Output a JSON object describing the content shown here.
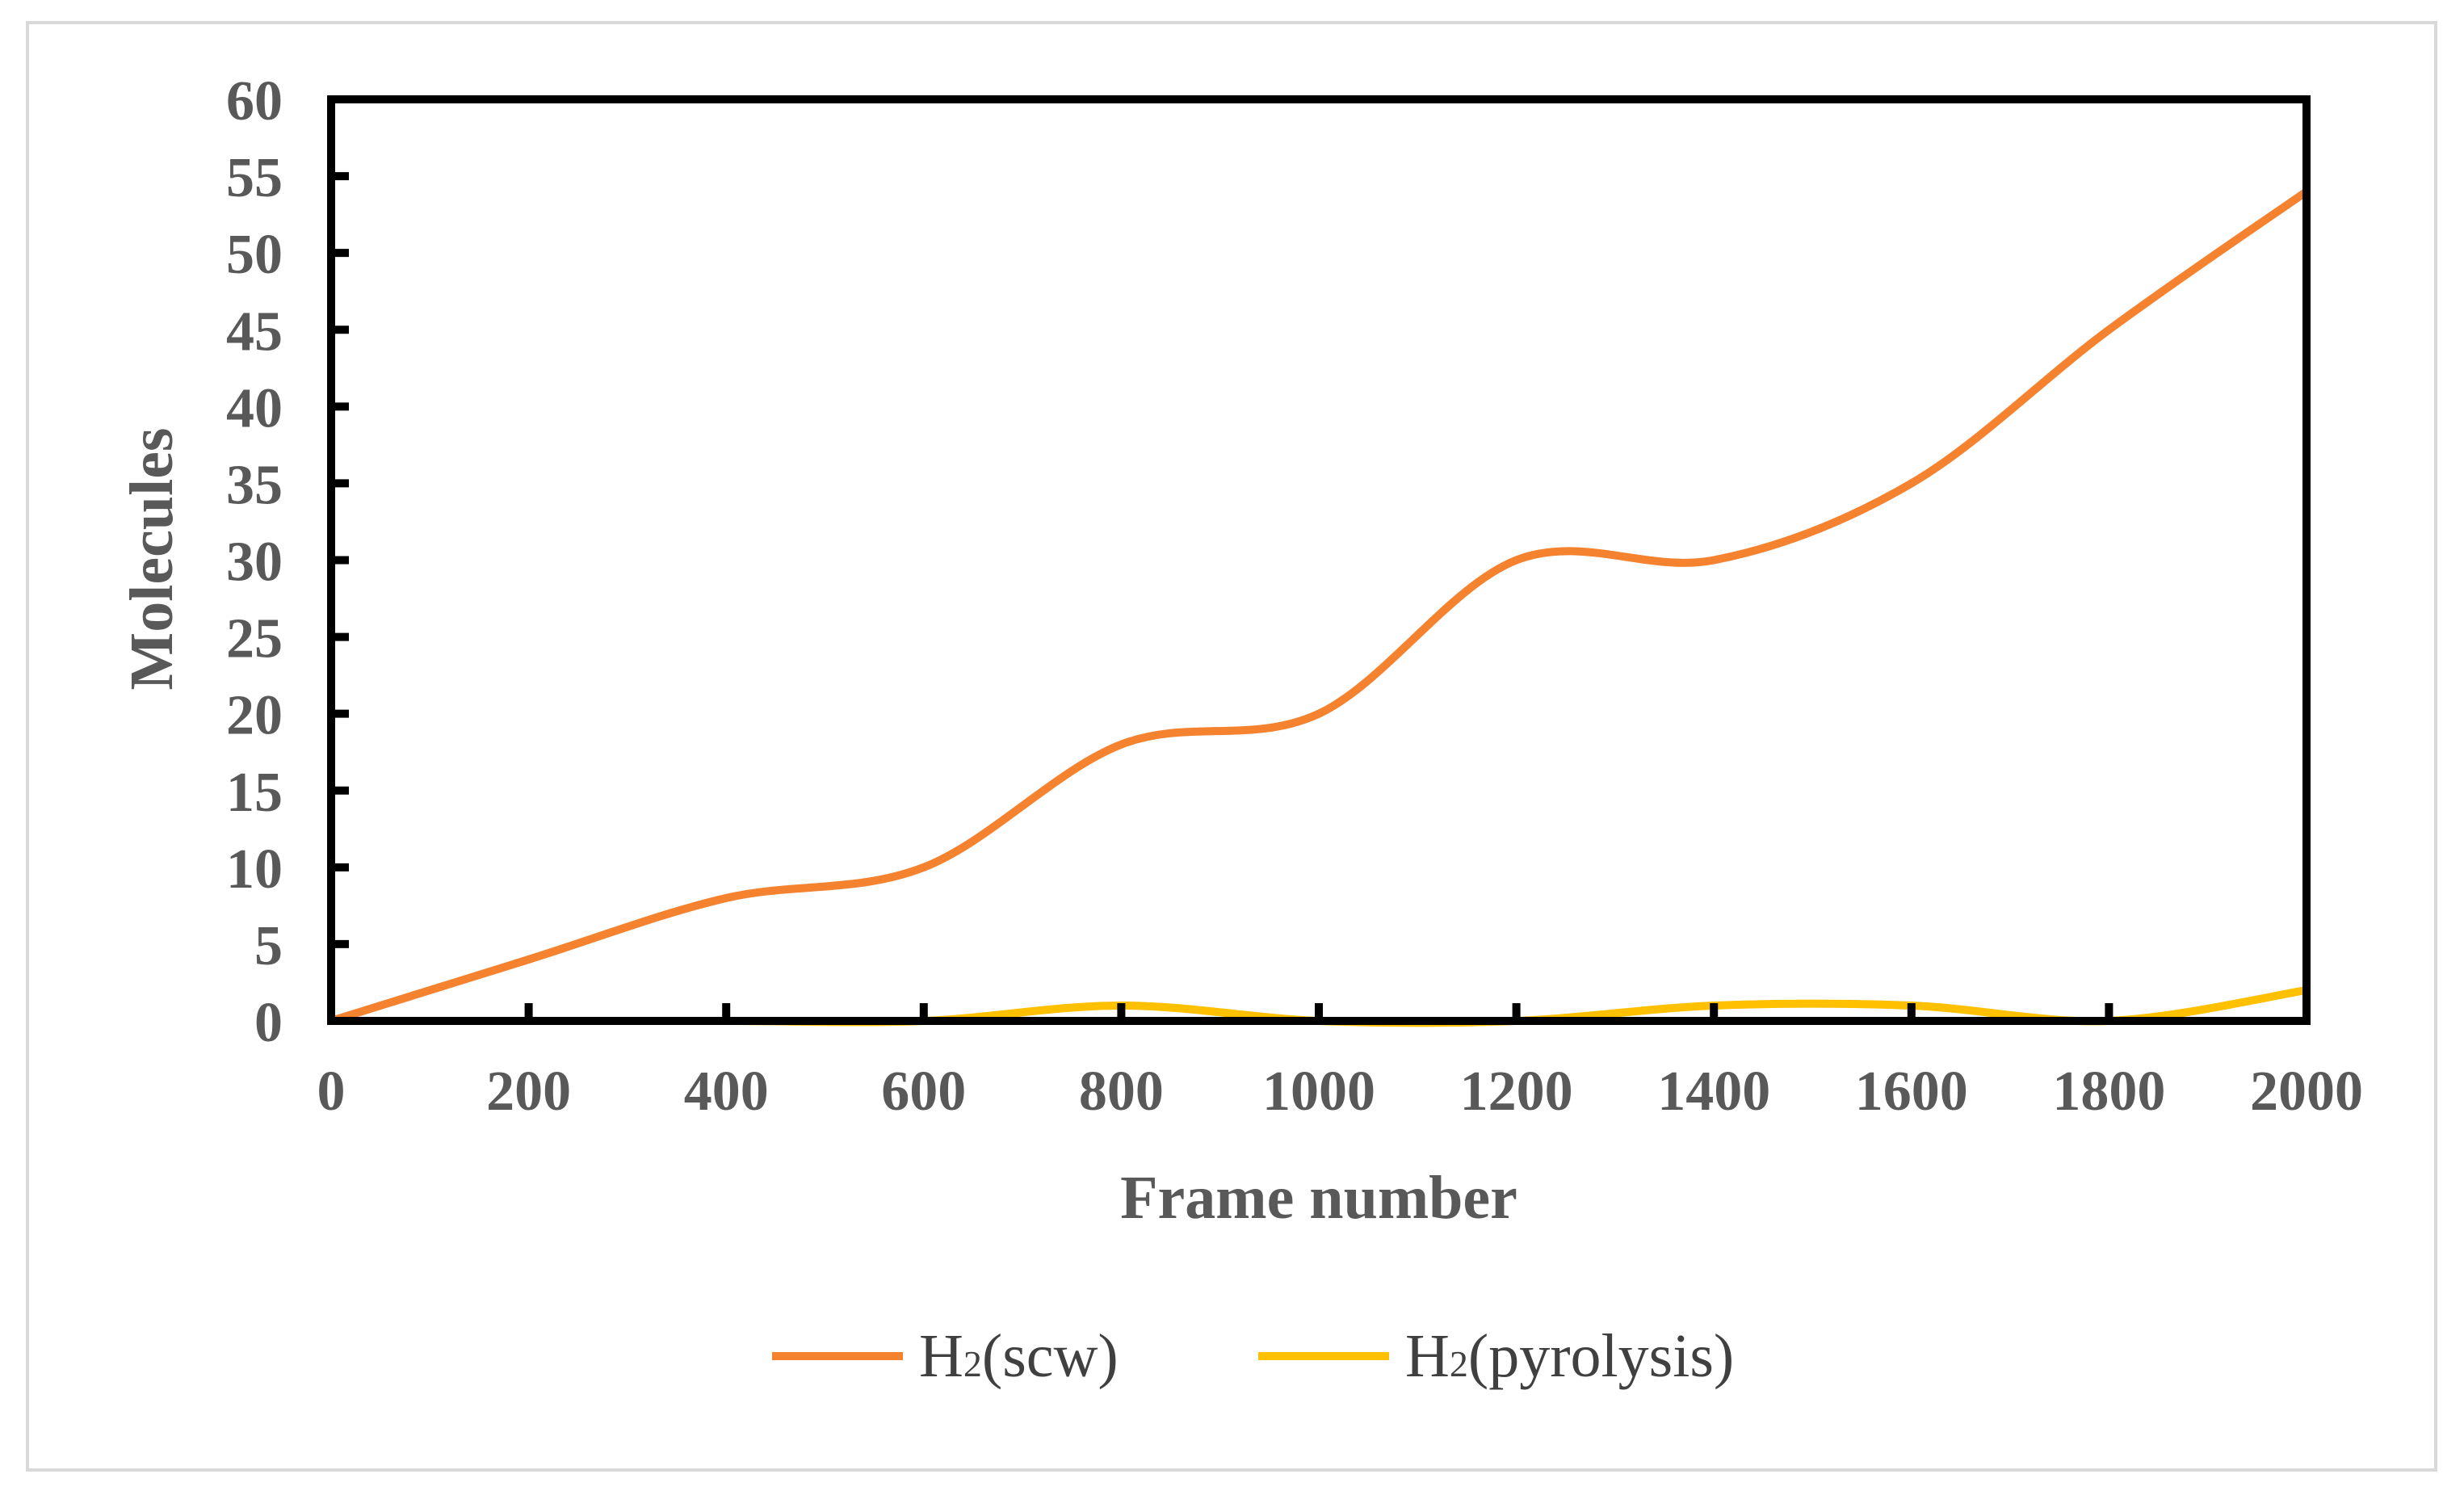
{
  "chart_data": {
    "type": "line",
    "title": "",
    "xlabel": "Frame number",
    "ylabel": "Molecules",
    "xlim": [
      0,
      2000
    ],
    "ylim": [
      0,
      60
    ],
    "x": [
      0,
      200,
      400,
      600,
      800,
      1000,
      1200,
      1400,
      1600,
      1800,
      2000
    ],
    "x_ticks": [
      "0",
      "200",
      "400",
      "600",
      "800",
      "1000",
      "1200",
      "1400",
      "1600",
      "1800",
      "2000"
    ],
    "y_ticks": [
      "0",
      "5",
      "10",
      "15",
      "20",
      "25",
      "30",
      "35",
      "40",
      "45",
      "50",
      "55",
      "60"
    ],
    "series": [
      {
        "name_main": "H",
        "name_sub": "2",
        "name_suffix": "(scw)",
        "color": "#f5822f",
        "values": [
          0,
          4,
          8,
          10,
          18,
          20,
          30,
          30,
          35,
          45,
          54
        ]
      },
      {
        "name_main": "H",
        "name_sub": "2",
        "name_suffix": "(pyrolysis)",
        "color": "#ffc000",
        "values": [
          0,
          0,
          0,
          0,
          1,
          0,
          0,
          1,
          1,
          0,
          2
        ]
      }
    ],
    "grid": false,
    "smooth": true,
    "legend_position": "bottom"
  }
}
